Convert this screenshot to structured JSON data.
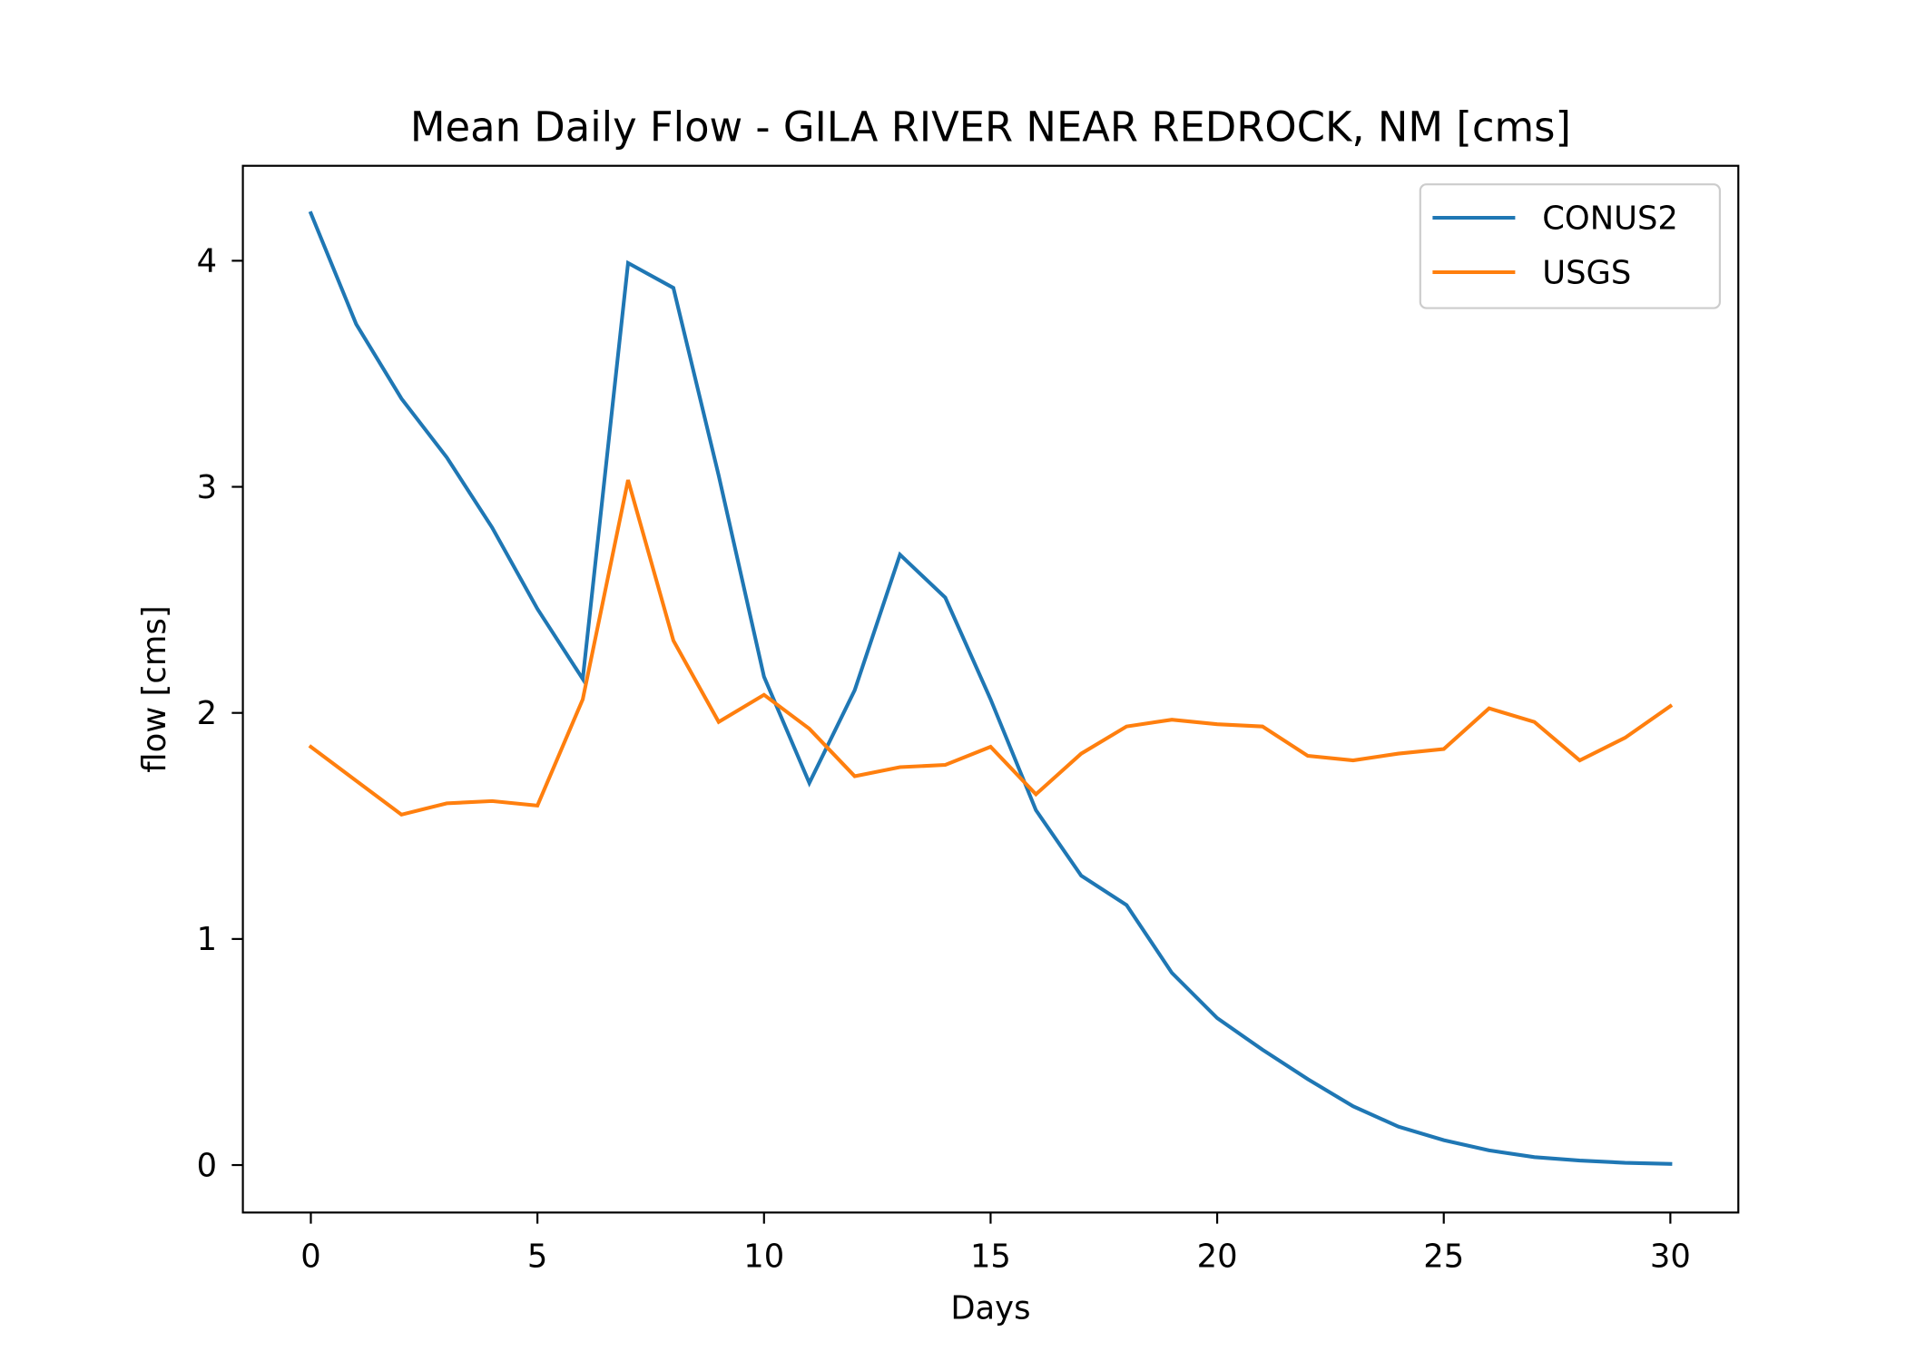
{
  "chart_data": {
    "type": "line",
    "title": "Mean Daily Flow - GILA RIVER NEAR REDROCK, NM [cms]",
    "xlabel": "Days",
    "ylabel": "flow [cms]",
    "xlim": [
      -1.5,
      31.5
    ],
    "ylim": [
      -0.21,
      4.42
    ],
    "xticks": [
      0,
      5,
      10,
      15,
      20,
      25,
      30
    ],
    "yticks": [
      0,
      1,
      2,
      3,
      4
    ],
    "grid": false,
    "legend_position": "top-right",
    "x": [
      0,
      1,
      2,
      3,
      4,
      5,
      6,
      7,
      8,
      9,
      10,
      11,
      12,
      13,
      14,
      15,
      16,
      17,
      18,
      19,
      20,
      21,
      22,
      23,
      24,
      25,
      26,
      27,
      28,
      29,
      30
    ],
    "series": [
      {
        "name": "CONUS2",
        "color": "#1f77b4",
        "values": [
          4.21,
          3.72,
          3.39,
          3.13,
          2.82,
          2.46,
          2.15,
          3.99,
          3.88,
          3.05,
          2.16,
          1.69,
          2.1,
          2.7,
          2.51,
          2.06,
          1.57,
          1.28,
          1.15,
          0.85,
          0.65,
          0.51,
          0.38,
          0.26,
          0.17,
          0.11,
          0.065,
          0.035,
          0.02,
          0.01,
          0.005
        ]
      },
      {
        "name": "USGS",
        "color": "#ff7f0e",
        "values": [
          1.85,
          1.7,
          1.55,
          1.6,
          1.61,
          1.59,
          2.06,
          3.03,
          2.32,
          1.96,
          2.08,
          1.93,
          1.72,
          1.76,
          1.77,
          1.85,
          1.64,
          1.82,
          1.94,
          1.97,
          1.95,
          1.94,
          1.81,
          1.79,
          1.82,
          1.84,
          2.02,
          1.96,
          1.79,
          1.89,
          2.03
        ]
      }
    ]
  }
}
